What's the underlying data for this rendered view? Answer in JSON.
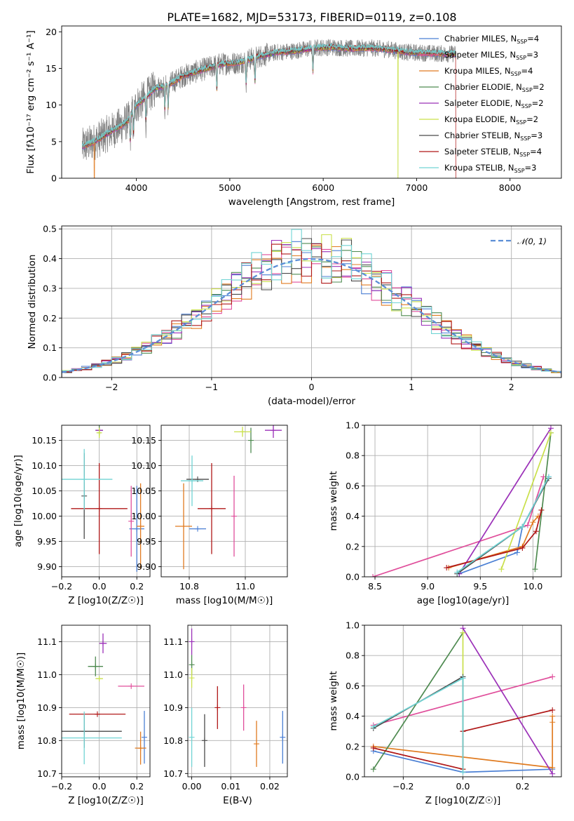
{
  "title": "PLATE=1682, MJD=53173, FIBERID=0119, z=0.108",
  "colors": {
    "Chabrier MILES": "#4a7fd4",
    "Salpeter MILES": "#e04e9b",
    "Kroupa MILES": "#e07b20",
    "Chabrier ELODIE": "#4e8a50",
    "Salpeter ELODIE": "#9b30b8",
    "Kroupa ELODIE": "#c9e04a",
    "Chabrier STELIB": "#4a4a4a",
    "Salpeter STELIB": "#b01818",
    "Kroupa STELIB": "#70d4d4",
    "data": "#7f7f7f",
    "normal": "#5b8ed6"
  },
  "legend_models": [
    {
      "key": "Chabrier MILES",
      "prefix": "Chabrier MILES, N",
      "sub": "SSP",
      "suffix": "=4"
    },
    {
      "key": "Salpeter MILES",
      "prefix": "Salpeter MILES, N",
      "sub": "SSP",
      "suffix": "=3"
    },
    {
      "key": "Kroupa MILES",
      "prefix": "Kroupa MILES, N",
      "sub": "SSP",
      "suffix": "=4"
    },
    {
      "key": "Chabrier ELODIE",
      "prefix": "Chabrier ELODIE, N",
      "sub": "SSP",
      "suffix": "=2"
    },
    {
      "key": "Salpeter ELODIE",
      "prefix": "Salpeter ELODIE, N",
      "sub": "SSP",
      "suffix": "=2"
    },
    {
      "key": "Kroupa ELODIE",
      "prefix": "Kroupa ELODIE, N",
      "sub": "SSP",
      "suffix": "=2"
    },
    {
      "key": "Chabrier STELIB",
      "prefix": "Chabrier STELIB, N",
      "sub": "SSP",
      "suffix": "=3"
    },
    {
      "key": "Salpeter STELIB",
      "prefix": "Salpeter STELIB, N",
      "sub": "SSP",
      "suffix": "=4"
    },
    {
      "key": "Kroupa STELIB",
      "prefix": "Kroupa STELIB, N",
      "sub": "SSP",
      "suffix": "=3"
    }
  ],
  "normal_legend": "𝒩(0, 1)",
  "chart_data": [
    {
      "id": "spectrum",
      "type": "line",
      "xlabel": "wavelength [Angstrom, rest frame]",
      "ylabel": "Flux [fλ10⁻¹⁷ erg cm⁻² s⁻¹ A⁻¹]",
      "xlim": [
        3200,
        8550
      ],
      "ylim": [
        0,
        20.8
      ],
      "xticks": [
        4000,
        5000,
        6000,
        7000,
        8000
      ],
      "yticks": [
        0,
        5,
        10,
        15,
        20
      ],
      "continuum": {
        "x": [
          3420,
          3550,
          3700,
          3850,
          3920,
          4000,
          4100,
          4200,
          4350,
          4500,
          4700,
          4900,
          5100,
          5300,
          5500,
          5700,
          5900,
          6100,
          6300,
          6500,
          6700,
          6900,
          7100,
          7300,
          7420
        ],
        "y": [
          4.3,
          5.0,
          6.2,
          7.3,
          8.0,
          10.0,
          11.0,
          12.3,
          12.8,
          14.0,
          14.8,
          15.6,
          15.8,
          16.6,
          17.2,
          17.4,
          17.8,
          17.9,
          17.7,
          17.8,
          17.6,
          17.2,
          17.1,
          17.0,
          17.0
        ]
      },
      "absorption_lines": [
        3934,
        3969,
        4102,
        4304,
        4340,
        4861,
        5175,
        5270,
        5890
      ],
      "model_dropouts": [
        {
          "model": "Kroupa ELODIE",
          "x": 6800
        },
        {
          "model": "Salpeter STELIB",
          "x": 7420
        },
        {
          "model": "Kroupa MILES",
          "x": 3550
        }
      ]
    },
    {
      "id": "residuals",
      "type": "histogram",
      "xlabel": "(data-model)/error",
      "ylabel": "Normed distribution",
      "xlim": [
        -2.5,
        2.5
      ],
      "ylim": [
        0,
        0.51
      ],
      "xticks": [
        -2,
        -1,
        0,
        1,
        2
      ],
      "yticks": [
        0,
        0.1,
        0.2,
        0.3,
        0.4,
        0.5
      ],
      "bin_width": 0.1,
      "normal_pdf": {
        "mean": 0,
        "sigma": 1
      }
    },
    {
      "id": "age_vs_Z",
      "type": "errorbar",
      "xlabel": "Z [log10(Z/Z☉)]",
      "ylabel": "age  [log10(age/yr)]",
      "xlim": [
        -0.2,
        0.27
      ],
      "ylim": [
        9.88,
        10.18
      ],
      "xticks": [
        -0.2,
        0.0,
        0.2
      ],
      "yticks": [
        9.9,
        9.95,
        10.0,
        10.05,
        10.1,
        10.15
      ],
      "points": [
        {
          "model": "Chabrier MILES",
          "x": 0.2,
          "y": 9.975,
          "xerr": 0.04,
          "yerr": 0.085
        },
        {
          "model": "Salpeter MILES",
          "x": 0.17,
          "y": 9.99,
          "xerr": 0.0,
          "yerr": 0.07
        },
        {
          "model": "Kroupa MILES",
          "x": 0.22,
          "y": 9.98,
          "xerr": 0.02,
          "yerr": 0.085
        },
        {
          "model": "Chabrier ELODIE",
          "x": 0.0,
          "y": 10.17,
          "xerr": 0.02,
          "yerr": 0.01
        },
        {
          "model": "Salpeter ELODIE",
          "x": 0.0,
          "y": 10.17,
          "xerr": 0.02,
          "yerr": 0.0
        },
        {
          "model": "Kroupa ELODIE",
          "x": 0.0,
          "y": 10.165,
          "xerr": 0.01,
          "yerr": 0.01
        },
        {
          "model": "Chabrier STELIB",
          "x": -0.08,
          "y": 10.04,
          "xerr": 0.0,
          "yerr": 0.085
        },
        {
          "model": "Salpeter STELIB",
          "x": 0.0,
          "y": 10.015,
          "xerr": 0.15,
          "yerr": 0.09
        },
        {
          "model": "Kroupa STELIB",
          "x": -0.08,
          "y": 10.073,
          "xerr": 0.15,
          "yerr": 0.06
        }
      ]
    },
    {
      "id": "age_vs_mass",
      "type": "errorbar",
      "xlabel": "mass [log10(M/M☉)]",
      "ylabel": "",
      "xlim": [
        10.7,
        11.15
      ],
      "ylim": [
        9.88,
        10.18
      ],
      "xticks": [
        10.8,
        11.0
      ],
      "yticks": [
        9.9,
        9.95,
        10.0,
        10.05,
        10.1,
        10.15
      ],
      "points": [
        {
          "model": "Chabrier MILES",
          "x": 10.83,
          "y": 9.975,
          "xerr": 0.03,
          "yerr": 0.0
        },
        {
          "model": "Salpeter MILES",
          "x": 10.96,
          "y": 10.0,
          "xerr": 0.0,
          "yerr": 0.08
        },
        {
          "model": "Kroupa MILES",
          "x": 10.78,
          "y": 9.98,
          "xerr": 0.03,
          "yerr": 0.085
        },
        {
          "model": "Chabrier ELODIE",
          "x": 11.02,
          "y": 10.15,
          "xerr": 0.0,
          "yerr": 0.025
        },
        {
          "model": "Salpeter ELODIE",
          "x": 11.1,
          "y": 10.17,
          "xerr": 0.03,
          "yerr": 0.015
        },
        {
          "model": "Kroupa ELODIE",
          "x": 10.99,
          "y": 10.167,
          "xerr": 0.03,
          "yerr": 0.01
        },
        {
          "model": "Chabrier STELIB",
          "x": 10.83,
          "y": 10.073,
          "xerr": 0.04,
          "yerr": 0.0
        },
        {
          "model": "Salpeter STELIB",
          "x": 10.88,
          "y": 10.015,
          "xerr": 0.05,
          "yerr": 0.09
        },
        {
          "model": "Kroupa STELIB",
          "x": 10.81,
          "y": 10.07,
          "xerr": 0.04,
          "yerr": 0.05
        }
      ]
    },
    {
      "id": "weight_vs_age",
      "type": "line",
      "xlabel": "age  [log10(age/yr)]",
      "ylabel": "mass weight",
      "xlim": [
        8.4,
        10.27
      ],
      "ylim": [
        0,
        1.0
      ],
      "xticks": [
        8.5,
        9.0,
        9.5,
        10.0
      ],
      "yticks": [
        0,
        0.2,
        0.4,
        0.6,
        0.8,
        1.0
      ],
      "series": [
        {
          "model": "Chabrier MILES",
          "x": [
            9.3,
            9.85,
            9.9,
            10.15
          ],
          "y": [
            0.02,
            0.16,
            0.33,
            0.66
          ]
        },
        {
          "model": "Salpeter MILES",
          "x": [
            8.48,
            9.95,
            10.1
          ],
          "y": [
            0.0,
            0.34,
            0.66
          ]
        },
        {
          "model": "Kroupa MILES",
          "x": [
            9.2,
            9.9,
            10.0,
            10.05
          ],
          "y": [
            0.06,
            0.2,
            0.36,
            0.4
          ]
        },
        {
          "model": "Chabrier ELODIE",
          "x": [
            10.02,
            10.17
          ],
          "y": [
            0.05,
            0.95
          ]
        },
        {
          "model": "Salpeter ELODIE",
          "x": [
            9.3,
            10.17
          ],
          "y": [
            0.02,
            0.98
          ]
        },
        {
          "model": "Kroupa ELODIE",
          "x": [
            9.7,
            10.17
          ],
          "y": [
            0.05,
            0.95
          ]
        },
        {
          "model": "Chabrier STELIB",
          "x": [
            9.28,
            9.9,
            10.15
          ],
          "y": [
            0.02,
            0.33,
            0.65
          ]
        },
        {
          "model": "Salpeter STELIB",
          "x": [
            9.18,
            9.9,
            10.03,
            10.08
          ],
          "y": [
            0.06,
            0.19,
            0.3,
            0.44
          ]
        },
        {
          "model": "Kroupa STELIB",
          "x": [
            9.28,
            9.9,
            10.15
          ],
          "y": [
            0.03,
            0.33,
            0.66
          ]
        }
      ]
    },
    {
      "id": "mass_vs_Z",
      "type": "errorbar",
      "xlabel": "Z [log10(Z/Z☉)]",
      "ylabel": "mass [log10(M/M☉)]",
      "xlim": [
        -0.2,
        0.27
      ],
      "ylim": [
        10.69,
        11.15
      ],
      "xticks": [
        -0.2,
        0.0,
        0.2
      ],
      "yticks": [
        10.7,
        10.8,
        10.9,
        11.0,
        11.1
      ],
      "points": [
        {
          "model": "Chabrier MILES",
          "x": 0.24,
          "y": 10.81,
          "xerr": 0.0,
          "yerr": 0.08
        },
        {
          "model": "Salpeter MILES",
          "x": 0.17,
          "y": 10.965,
          "xerr": 0.07,
          "yerr": 0.0
        },
        {
          "model": "Kroupa MILES",
          "x": 0.22,
          "y": 10.777,
          "xerr": 0.03,
          "yerr": 0.05
        },
        {
          "model": "Chabrier ELODIE",
          "x": -0.02,
          "y": 11.025,
          "xerr": 0.04,
          "yerr": 0.03
        },
        {
          "model": "Salpeter ELODIE",
          "x": 0.02,
          "y": 11.095,
          "xerr": 0.02,
          "yerr": 0.03
        },
        {
          "model": "Kroupa ELODIE",
          "x": 0.0,
          "y": 10.988,
          "xerr": 0.02,
          "yerr": 0.0
        },
        {
          "model": "Chabrier STELIB",
          "x": -0.08,
          "y": 10.828,
          "xerr": 0.2,
          "yerr": 0.05
        },
        {
          "model": "Salpeter STELIB",
          "x": -0.01,
          "y": 10.88,
          "xerr": 0.15,
          "yerr": 0.0
        },
        {
          "model": "Kroupa STELIB",
          "x": -0.08,
          "y": 10.808,
          "xerr": 0.2,
          "yerr": 0.08
        }
      ]
    },
    {
      "id": "mass_vs_EBV",
      "type": "errorbar",
      "xlabel": "E(B-V)",
      "ylabel": "",
      "xlim": [
        -0.001,
        0.0245
      ],
      "ylim": [
        10.69,
        11.15
      ],
      "xticks": [
        0.0,
        0.01,
        0.02
      ],
      "yticks": [
        10.7,
        10.8,
        10.9,
        11.0,
        11.1
      ],
      "points": [
        {
          "model": "Chabrier MILES",
          "x": 0.0233,
          "y": 10.81,
          "xerr": 0.0,
          "yerr": 0.08
        },
        {
          "model": "Salpeter MILES",
          "x": 0.0133,
          "y": 10.9,
          "xerr": 0.0,
          "yerr": 0.07
        },
        {
          "model": "Kroupa MILES",
          "x": 0.0166,
          "y": 10.79,
          "xerr": 0.0,
          "yerr": 0.07
        },
        {
          "model": "Chabrier ELODIE",
          "x": 0.0,
          "y": 11.03,
          "xerr": 0.0,
          "yerr": 0.03
        },
        {
          "model": "Salpeter ELODIE",
          "x": 0.0,
          "y": 11.1,
          "xerr": 0.0,
          "yerr": 0.04
        },
        {
          "model": "Kroupa ELODIE",
          "x": 0.0,
          "y": 10.99,
          "xerr": 0.0,
          "yerr": 0.03
        },
        {
          "model": "Chabrier STELIB",
          "x": 0.0033,
          "y": 10.8,
          "xerr": 0.0,
          "yerr": 0.08
        },
        {
          "model": "Salpeter STELIB",
          "x": 0.0066,
          "y": 10.9,
          "xerr": 0.0,
          "yerr": 0.065
        },
        {
          "model": "Kroupa STELIB",
          "x": 0.0,
          "y": 10.81,
          "xerr": 0.0,
          "yerr": 0.09
        }
      ]
    },
    {
      "id": "weight_vs_Z",
      "type": "line",
      "xlabel": "Z [log10(Z/Z☉)]",
      "ylabel": "mass weight",
      "xlim": [
        -0.33,
        0.33
      ],
      "ylim": [
        0,
        1.0
      ],
      "xticks": [
        -0.2,
        0.0,
        0.2
      ],
      "yticks": [
        0,
        0.2,
        0.4,
        0.6,
        0.8,
        1.0
      ],
      "series": [
        {
          "model": "Chabrier MILES",
          "x": [
            -0.3,
            0.0,
            0.3
          ],
          "y": [
            0.17,
            0.03,
            0.05
          ]
        },
        {
          "model": "Salpeter MILES",
          "x": [
            -0.3,
            0.3
          ],
          "y": [
            0.34,
            0.66
          ]
        },
        {
          "model": "Kroupa MILES",
          "x": [
            -0.3,
            0.3,
            0.3,
            0.3
          ],
          "y": [
            0.2,
            0.06,
            0.36,
            0.4
          ]
        },
        {
          "model": "Chabrier ELODIE",
          "x": [
            -0.3,
            0.0
          ],
          "y": [
            0.05,
            0.95
          ]
        },
        {
          "model": "Salpeter ELODIE",
          "x": [
            0.0,
            0.3
          ],
          "y": [
            0.98,
            0.02
          ]
        },
        {
          "model": "Kroupa ELODIE",
          "x": [
            0.0,
            0.0
          ],
          "y": [
            0.05,
            0.95
          ]
        },
        {
          "model": "Chabrier STELIB",
          "x": [
            -0.3,
            0.0,
            0.0
          ],
          "y": [
            0.32,
            0.66,
            0.3
          ]
        },
        {
          "model": "Salpeter STELIB",
          "x": [
            -0.3,
            0.0,
            0.0,
            0.3
          ],
          "y": [
            0.19,
            0.05,
            0.3,
            0.44
          ]
        },
        {
          "model": "Kroupa STELIB",
          "x": [
            -0.3,
            0.0,
            0.0
          ],
          "y": [
            0.33,
            0.65,
            0.03
          ]
        }
      ]
    }
  ]
}
